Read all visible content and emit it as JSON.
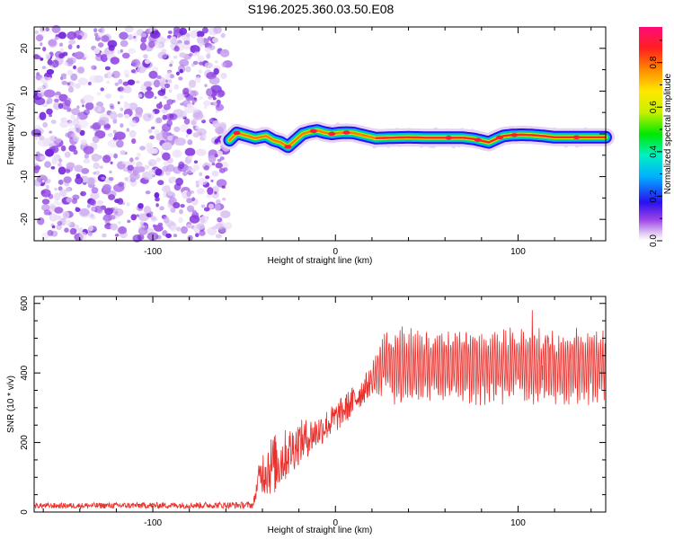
{
  "figure": {
    "title": "S196.2025.360.03.50.E08"
  },
  "chart_data": [
    {
      "type": "heatmap",
      "name": "spectrogram",
      "xlabel": "Height of straight line (km)",
      "ylabel": "Frequency (Hz)",
      "xlim": [
        -165,
        148
      ],
      "ylim": [
        -25,
        25
      ],
      "xticks": [
        -100,
        0,
        100
      ],
      "yticks": [
        20,
        10,
        0,
        -10,
        -20
      ],
      "xtick_labels": [
        "-100",
        "0",
        "100"
      ],
      "ytick_labels": [
        "20",
        "10",
        "0",
        "-10",
        "-20"
      ],
      "noise_region_x": [
        -165,
        -58
      ],
      "ridge": {
        "x": [
          -58,
          -54,
          -48,
          -44,
          -38,
          -34,
          -30,
          -26,
          -22,
          -18,
          -14,
          -10,
          -6,
          -2,
          2,
          6,
          10,
          16,
          22,
          30,
          40,
          50,
          60,
          70,
          76,
          80,
          84,
          88,
          92,
          96,
          102,
          108,
          114,
          120,
          130,
          140,
          148
        ],
        "freq": [
          -1.5,
          0.2,
          -0.5,
          -1.0,
          -0.5,
          -1.5,
          -2.0,
          -3.0,
          -1.5,
          0.0,
          0.5,
          0.8,
          0.3,
          0.0,
          0.2,
          0.3,
          0.2,
          -0.4,
          -1.0,
          -0.9,
          -0.8,
          -0.9,
          -0.9,
          -0.9,
          -1.2,
          -1.6,
          -2.0,
          -1.2,
          -0.5,
          -0.3,
          -0.2,
          -0.3,
          -0.5,
          -0.8,
          -0.8,
          -0.8,
          -0.8
        ]
      },
      "colorbar": {
        "label": "Normalized spectral amplitude",
        "ticks": [
          0.0,
          0.2,
          0.4,
          0.6,
          0.8
        ],
        "tick_labels": [
          "0.0",
          "0.2",
          "0.4",
          "0.6",
          "0.8"
        ],
        "range": [
          0,
          0.96
        ]
      }
    },
    {
      "type": "line",
      "name": "snr",
      "xlabel": "Height of straight line (km)",
      "ylabel": "SNR (10 * v/v)",
      "xlim": [
        -165,
        148
      ],
      "ylim": [
        0,
        620
      ],
      "xticks": [
        -100,
        0,
        100
      ],
      "yticks": [
        0,
        200,
        400,
        600
      ],
      "xtick_labels": [
        "-100",
        "0",
        "100"
      ],
      "ytick_labels": [
        "0",
        "200",
        "400",
        "600"
      ],
      "color": "#e8302c",
      "envelope": {
        "x": [
          -165,
          -45,
          -42,
          -38,
          -32,
          -26,
          -20,
          -10,
          0,
          10,
          20,
          26,
          30,
          40,
          60,
          80,
          100,
          120,
          148
        ],
        "base": [
          18,
          20,
          100,
          130,
          140,
          170,
          200,
          230,
          270,
          320,
          380,
          420,
          420,
          420,
          420,
          420,
          420,
          420,
          420
        ],
        "amp": [
          10,
          12,
          45,
          110,
          110,
          90,
          80,
          60,
          55,
          55,
          50,
          90,
          110,
          110,
          110,
          110,
          110,
          110,
          110
        ]
      }
    }
  ]
}
